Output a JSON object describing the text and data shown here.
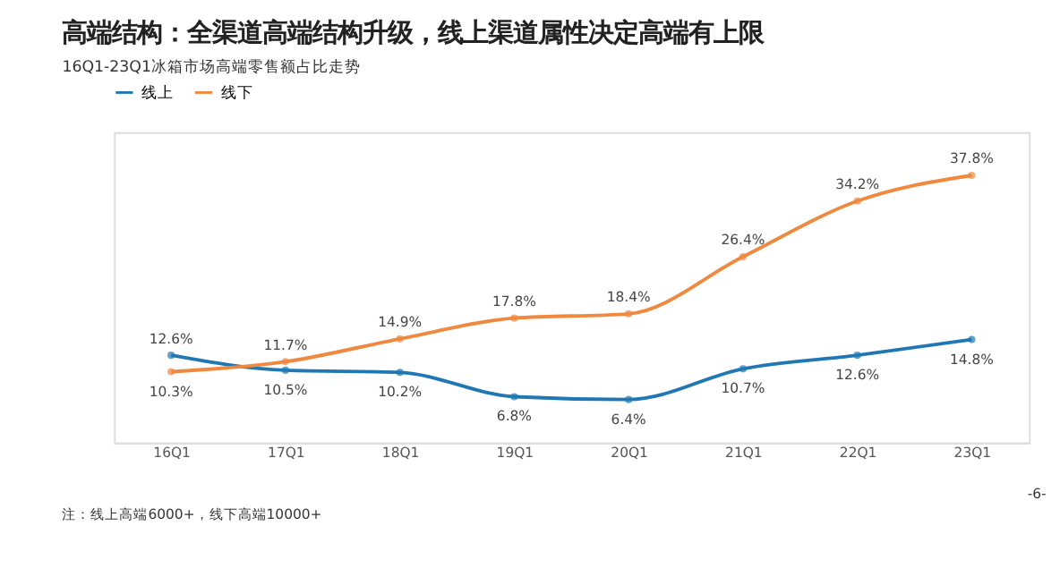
{
  "chart_data": {
    "type": "line",
    "title": "高端结构：全渠道高端结构升级，线上渠道属性决定高端有上限",
    "subtitle": "16Q1-23Q1冰箱市场高端零售额占比走势",
    "categories": [
      "16Q1",
      "17Q1",
      "18Q1",
      "19Q1",
      "20Q1",
      "21Q1",
      "22Q1",
      "23Q1"
    ],
    "series": [
      {
        "name": "线上",
        "color": "#1f77b4",
        "values": [
          12.6,
          10.5,
          10.2,
          6.8,
          6.4,
          10.7,
          12.6,
          14.8
        ],
        "value_labels": [
          "12.6%",
          "10.5%",
          "10.2%",
          "6.8%",
          "6.4%",
          "10.7%",
          "12.6%",
          "14.8%"
        ]
      },
      {
        "name": "线下",
        "color": "#f0883e",
        "values": [
          10.3,
          11.7,
          14.9,
          17.8,
          18.4,
          26.4,
          34.2,
          37.8
        ],
        "value_labels": [
          "10.3%",
          "11.7%",
          "14.9%",
          "17.8%",
          "18.4%",
          "26.4%",
          "34.2%",
          "37.8%"
        ]
      }
    ],
    "marker": "circle",
    "line_style": "solid",
    "legend": "top",
    "grid": false,
    "tick_labels": "x",
    "annotations": [
      "注：线上高端6000+，线下高端10000+",
      "-6-"
    ]
  }
}
